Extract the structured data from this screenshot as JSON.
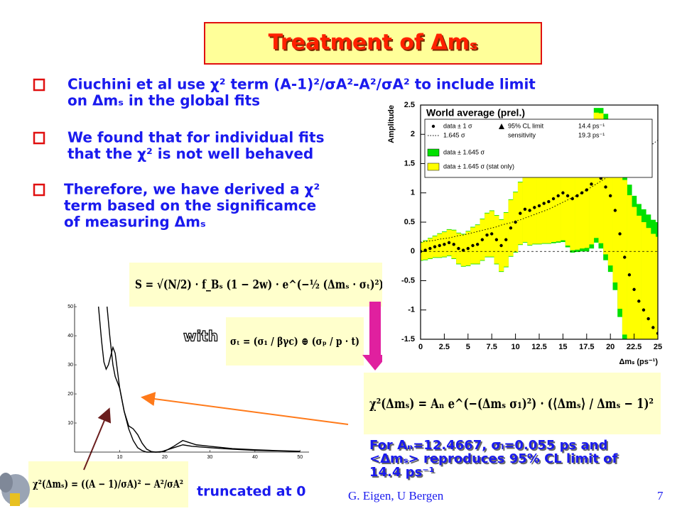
{
  "title": "Treatment of Δmₛ",
  "bullets": [
    [
      "Ciuchini et al use χ² term (A-1)²/σA²-A²/σA² to include limit",
      "on Δmₛ in the global fits"
    ],
    [
      "We found that for individual fits",
      "that the χ² is not well behaved"
    ],
    [
      "Therefore, we have derived a χ²",
      "term based on the significamce",
      "of measuring Δmₛ"
    ]
  ],
  "chart_data": [
    {
      "type": "band",
      "title": "World average (prel.)",
      "x_label": "Δmₛ (ps⁻¹)",
      "y_label": "Amplitude",
      "x": [
        0,
        0.5,
        1,
        1.5,
        2,
        2.5,
        3,
        3.5,
        4,
        4.5,
        5,
        5.5,
        6,
        6.5,
        7,
        7.5,
        8,
        8.5,
        9,
        9.5,
        10,
        10.5,
        11,
        11.5,
        12,
        12.5,
        13,
        13.5,
        14,
        14.5,
        15,
        15.5,
        16,
        16.5,
        17,
        17.5,
        18,
        18.5,
        19,
        19.5,
        20,
        20.5,
        21,
        21.5,
        22,
        22.5,
        23,
        23.5,
        24,
        24.5,
        25
      ],
      "series": [
        {
          "name": "data ± 1 σ",
          "color": "#000000",
          "values": [
            0,
            0.02,
            0.05,
            0.08,
            0.1,
            0.12,
            0.15,
            0.12,
            0.05,
            0.02,
            0.05,
            0.1,
            0.12,
            0.2,
            0.28,
            0.3,
            0.2,
            0.1,
            0.2,
            0.4,
            0.5,
            0.65,
            0.72,
            0.7,
            0.75,
            0.78,
            0.82,
            0.85,
            0.9,
            0.95,
            1,
            0.95,
            0.9,
            0.95,
            1,
            1.05,
            1.15,
            1.3,
            1.25,
            1.1,
            0.95,
            0.7,
            0.3,
            -0.1,
            -0.4,
            -0.65,
            -0.85,
            -1,
            -1.15,
            -1.3,
            -1.4
          ]
        },
        {
          "name": "data ± 1.645 σ",
          "color": "#00e000",
          "errors": [
            0.16,
            0.17,
            0.18,
            0.19,
            0.21,
            0.22,
            0.23,
            0.25,
            0.27,
            0.28,
            0.3,
            0.32,
            0.34,
            0.36,
            0.38,
            0.4,
            0.42,
            0.45,
            0.47,
            0.49,
            0.52,
            0.54,
            0.57,
            0.6,
            0.63,
            0.66,
            0.69,
            0.72,
            0.76,
            0.8,
            0.84,
            0.88,
            0.92,
            0.96,
            1,
            1.05,
            1.1,
            1.15,
            1.2,
            1.25,
            1.3,
            1.36,
            1.42,
            1.48,
            1.54,
            1.6,
            1.66,
            1.72,
            1.78,
            1.84,
            1.9
          ]
        },
        {
          "name": "data ± 1.645 σ (stat only)",
          "color": "#ffff00",
          "errors": [
            0.15,
            0.16,
            0.17,
            0.18,
            0.2,
            0.21,
            0.22,
            0.24,
            0.26,
            0.27,
            0.29,
            0.31,
            0.33,
            0.35,
            0.37,
            0.39,
            0.41,
            0.44,
            0.46,
            0.48,
            0.51,
            0.53,
            0.56,
            0.59,
            0.62,
            0.65,
            0.68,
            0.71,
            0.74,
            0.78,
            0.81,
            0.85,
            0.88,
            0.92,
            0.95,
            0.99,
            1.03,
            1.07,
            1.11,
            1.15,
            1.19,
            1.23,
            1.28,
            1.32,
            1.36,
            1.41,
            1.46,
            1.5,
            1.55,
            1.6,
            1.65
          ]
        },
        {
          "name": "1.645 σ",
          "color": "#000000",
          "values": [
            0.16,
            0.17,
            0.18,
            0.19,
            0.21,
            0.22,
            0.23,
            0.25,
            0.27,
            0.28,
            0.3,
            0.32,
            0.34,
            0.36,
            0.38,
            0.4,
            0.42,
            0.45,
            0.47,
            0.49,
            0.52,
            0.54,
            0.57,
            0.6,
            0.63,
            0.66,
            0.69,
            0.72,
            0.76,
            0.8,
            0.84,
            0.88,
            0.92,
            0.96,
            1,
            1.05,
            1.1,
            1.15,
            1.2,
            1.25,
            1.3,
            1.36,
            1.42,
            1.48,
            1.54,
            1.6,
            1.66,
            1.72,
            1.78,
            1.84,
            1.9
          ]
        }
      ],
      "legend_notes": [
        "95% CL limit",
        "14.4 ps⁻¹",
        "sensitivity",
        "19.3 ps⁻¹"
      ],
      "xlim": [
        0,
        25
      ],
      "xticks": [
        0,
        2.5,
        5,
        7.5,
        10,
        12.5,
        15,
        17.5,
        20,
        22.5,
        25
      ],
      "ylim": [
        -1.5,
        2.5
      ],
      "yticks": [
        -1.5,
        -1,
        -0.5,
        0,
        0.5,
        1,
        1.5,
        2,
        2.5
      ]
    },
    {
      "type": "line",
      "series": [
        {
          "color": "#000000",
          "x": [
            5.3,
            6,
            6.5,
            7,
            7.5,
            8,
            8.5,
            9,
            9.5,
            10,
            11,
            12,
            13,
            14,
            15,
            16,
            18,
            20,
            22,
            24,
            25,
            27,
            30,
            35,
            40,
            45,
            50
          ],
          "values": [
            50,
            38,
            31,
            28.5,
            30,
            33,
            36,
            34,
            28,
            22,
            14,
            8,
            4,
            1.5,
            0.5,
            0,
            0,
            0.3,
            2,
            4,
            3.5,
            2.5,
            2,
            1.2,
            0.8,
            0.5,
            0.3
          ]
        },
        {
          "color": "#000000",
          "x": [
            7.2,
            7.8,
            8.5,
            9,
            9.5,
            10,
            10.5,
            11,
            12,
            13,
            14,
            15,
            16,
            17,
            18,
            19,
            20,
            22,
            24,
            26,
            30,
            35,
            40,
            45,
            50
          ],
          "values": [
            50,
            40,
            30,
            26,
            24,
            22,
            18,
            14,
            9,
            8,
            6,
            3,
            1,
            0.2,
            0,
            0,
            0.5,
            1.5,
            2.5,
            2,
            1.5,
            1,
            0.6,
            0.4,
            0.2
          ]
        }
      ],
      "xlim": [
        0,
        52
      ],
      "xticks": [
        10,
        20,
        30,
        40,
        50
      ],
      "ylim": [
        0,
        51
      ],
      "yticks": [
        10,
        20,
        30,
        40,
        50
      ]
    }
  ],
  "equations": {
    "significance": "S = √(N/2) · f_Bₛ (1 − 2w) · e^(−½ (Δmₛ · σₜ)²)",
    "with": "with",
    "sigma_t": "σₜ = (σ₁ / βγc) ⊕ (σₚ / p · t)",
    "chi2_new": "χ²(Δmₛ) = Aₙ e^(−(Δmₛ σ₁)²) · (⟨Δmₛ⟩ / Δmₛ − 1)²",
    "chi2_old": "χ²(Δmₛ) = ((A − 1)/σA)² − A²/σA²"
  },
  "caption": [
    "For Aₙ=12.4667, σₗ=0.055 ps and",
    "<Δmₛ> reproduces 95% CL limit of",
    "14.4 ps⁻¹"
  ],
  "truncated": "truncated at 0",
  "footer": {
    "author": "G. Eigen, U Bergen",
    "page": "7"
  }
}
